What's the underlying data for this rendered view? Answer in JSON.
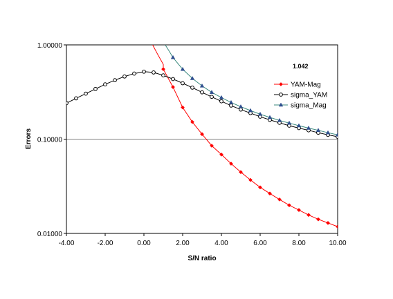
{
  "chart_data": {
    "type": "line",
    "xlabel": "S/N ratio",
    "ylabel": "Errors",
    "xlim": [
      -4,
      10
    ],
    "ylim": [
      0.01,
      1
    ],
    "y_scale": "log",
    "x_ticks": [
      "-4.00",
      "-2.00",
      "0.00",
      "2.00",
      "4.00",
      "6.00",
      "8.00",
      "10.00"
    ],
    "y_ticks": [
      "0.01000",
      "0.10000",
      "1.00000"
    ],
    "gridlines": "horizontal at 0.10000",
    "legend_position": "right",
    "annotation": "1.042",
    "series": [
      {
        "name": "YAM-Mag",
        "color": "#ff0000",
        "marker": "diamond",
        "line_x": [
          0.45,
          0.7,
          1.0
        ],
        "line_y": [
          1.0,
          0.8,
          0.62
        ],
        "x": [
          1.0,
          1.5,
          2.0,
          2.5,
          3.0,
          3.5,
          4.0,
          4.5,
          5.0,
          5.5,
          6.0,
          6.5,
          7.0,
          7.5,
          8.0,
          8.5,
          9.0,
          9.5,
          10.0
        ],
        "y": [
          0.553,
          0.357,
          0.217,
          0.152,
          0.113,
          0.0852,
          0.0686,
          0.0549,
          0.0447,
          0.0369,
          0.0308,
          0.0265,
          0.0229,
          0.0199,
          0.0177,
          0.0157,
          0.0141,
          0.0129,
          0.0118
        ]
      },
      {
        "name": "sigma_YAM",
        "color": "#000000",
        "marker": "circle",
        "x": [
          -4.0,
          -3.5,
          -3.0,
          -2.5,
          -2.0,
          -1.5,
          -1.0,
          -0.5,
          0.0,
          0.5,
          1.0,
          1.5,
          2.0,
          2.5,
          3.0,
          3.5,
          4.0,
          4.5,
          5.0,
          5.5,
          6.0,
          6.5,
          7.0,
          7.5,
          8.0,
          8.5,
          9.0,
          9.5,
          10.0
        ],
        "y": [
          0.241,
          0.271,
          0.304,
          0.341,
          0.381,
          0.422,
          0.462,
          0.496,
          0.52,
          0.51,
          0.475,
          0.434,
          0.392,
          0.352,
          0.314,
          0.281,
          0.252,
          0.227,
          0.206,
          0.189,
          0.173,
          0.16,
          0.149,
          0.139,
          0.131,
          0.124,
          0.117,
          0.111,
          0.106
        ]
      },
      {
        "name": "sigma_Mag",
        "color": "#2f4f8f",
        "line_color": "#3b8a7e",
        "marker": "triangle",
        "line_x": [
          1.1,
          1.3,
          1.5
        ],
        "line_y": [
          1.0,
          0.86,
          0.735
        ],
        "x": [
          1.5,
          2.0,
          2.5,
          3.0,
          3.5,
          4.0,
          4.5,
          5.0,
          5.5,
          6.0,
          6.5,
          7.0,
          7.5,
          8.0,
          8.5,
          9.0,
          9.5,
          10.0
        ],
        "y": [
          0.735,
          0.551,
          0.441,
          0.367,
          0.314,
          0.276,
          0.245,
          0.221,
          0.201,
          0.184,
          0.17,
          0.158,
          0.148,
          0.139,
          0.131,
          0.124,
          0.117,
          0.111
        ]
      }
    ]
  }
}
